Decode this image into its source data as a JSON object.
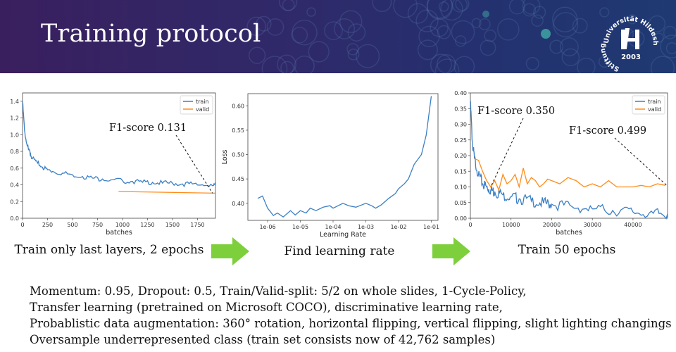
{
  "slide": {
    "title": "Training protocol"
  },
  "logo": {
    "text_top": "Universität Hildesheim",
    "text_left": "Stiftung",
    "year": "2003"
  },
  "colors": {
    "train": "#3b7fc4",
    "valid": "#ff8c1a",
    "arrow": "#7dcf3c",
    "header": "#2f2a6a"
  },
  "captions": {
    "plot1": "Train only last layers, 2 epochs",
    "plot2": "Find learning rate",
    "plot3": "Train 50 epochs"
  },
  "bullets": [
    "Momentum: 0.95, Dropout: 0.5, Train/Valid-split: 5/2 on whole slides, 1-Cycle-Policy,",
    "Transfer learning (pretrained on Microsoft COCO), discriminative learning rate,",
    "Probablistic data augmentation: 360° rotation, horizontal flipping, vertical flipping, slight lighting changings",
    "Oversample underrepresented class (train set consists now of 42,762 samples)"
  ],
  "chart_data": [
    {
      "type": "line",
      "xlabel": "batches",
      "ylabel": "",
      "xlim": [
        0,
        1930
      ],
      "ylim": [
        0,
        1.5
      ],
      "xticks": [
        "0",
        "250",
        "500",
        "750",
        "1000",
        "1250",
        "1500",
        "1750"
      ],
      "yticks": [
        "0.0",
        "0.2",
        "0.4",
        "0.6",
        "0.8",
        "1.0",
        "1.2",
        "1.4"
      ],
      "legend": [
        "train",
        "valid"
      ],
      "legend_position": "top-right",
      "annotation": "F1-score 0.131",
      "series": [
        {
          "name": "train",
          "x": [
            0,
            20,
            40,
            60,
            80,
            100,
            150,
            200,
            250,
            300,
            400,
            500,
            600,
            700,
            800,
            900,
            1000,
            1100,
            1200,
            1300,
            1400,
            1500,
            1600,
            1700,
            1800,
            1900,
            1930
          ],
          "y": [
            1.4,
            1.05,
            0.9,
            0.82,
            0.77,
            0.72,
            0.66,
            0.61,
            0.58,
            0.56,
            0.54,
            0.52,
            0.5,
            0.48,
            0.47,
            0.46,
            0.45,
            0.44,
            0.43,
            0.43,
            0.42,
            0.42,
            0.41,
            0.41,
            0.4,
            0.39,
            0.39
          ]
        },
        {
          "name": "valid",
          "x": [
            960,
            1930
          ],
          "y": [
            0.32,
            0.3
          ]
        }
      ]
    },
    {
      "type": "line",
      "xlabel": "Learning Rate",
      "ylabel": "Loss",
      "xscale": "log",
      "xlim": [
        2.5e-07,
        0.16
      ],
      "ylim": [
        0.365,
        0.625
      ],
      "xticks": [
        "1e-06",
        "1e-05",
        "1e-04",
        "1e-03",
        "1e-02",
        "1e-01"
      ],
      "yticks": [
        "0.40",
        "0.45",
        "0.50",
        "0.55",
        "0.60"
      ],
      "series": [
        {
          "name": "",
          "x": [
            5e-07,
            7e-07,
            1e-06,
            1.5e-06,
            2e-06,
            3e-06,
            5e-06,
            7e-06,
            1e-05,
            1.5e-05,
            2e-05,
            3e-05,
            5e-05,
            8e-05,
            0.0001,
            0.0002,
            0.0003,
            0.0005,
            0.001,
            0.0015,
            0.002,
            0.003,
            0.005,
            0.008,
            0.01,
            0.015,
            0.02,
            0.03,
            0.05,
            0.07,
            0.1
          ],
          "y": [
            0.41,
            0.415,
            0.39,
            0.375,
            0.38,
            0.372,
            0.385,
            0.376,
            0.385,
            0.38,
            0.39,
            0.385,
            0.392,
            0.395,
            0.39,
            0.4,
            0.395,
            0.392,
            0.4,
            0.395,
            0.39,
            0.397,
            0.41,
            0.42,
            0.43,
            0.44,
            0.45,
            0.48,
            0.5,
            0.54,
            0.62
          ]
        }
      ]
    },
    {
      "type": "line",
      "xlabel": "batches",
      "ylabel": "",
      "xlim": [
        0,
        48500
      ],
      "ylim": [
        0,
        0.4
      ],
      "xticks": [
        "0",
        "10000",
        "20000",
        "30000",
        "40000"
      ],
      "yticks": [
        "0.00",
        "0.05",
        "0.10",
        "0.15",
        "0.20",
        "0.25",
        "0.30",
        "0.35",
        "0.40"
      ],
      "legend": [
        "train",
        "valid"
      ],
      "legend_position": "top-right",
      "annotations": [
        "F1-score 0.350",
        "F1-score 0.499"
      ],
      "series": [
        {
          "name": "train",
          "x": [
            0,
            500,
            1000,
            2000,
            3000,
            4000,
            5000,
            6000,
            8000,
            10000,
            12000,
            15000,
            18000,
            20000,
            25000,
            30000,
            35000,
            40000,
            45000,
            48500
          ],
          "y": [
            0.37,
            0.24,
            0.19,
            0.14,
            0.11,
            0.1,
            0.09,
            0.085,
            0.075,
            0.068,
            0.062,
            0.055,
            0.048,
            0.045,
            0.037,
            0.03,
            0.025,
            0.02,
            0.016,
            0.014
          ]
        },
        {
          "name": "valid",
          "x": [
            1000,
            2000,
            3000,
            4000,
            5000,
            6000,
            7000,
            8000,
            9000,
            10000,
            11000,
            12000,
            13000,
            14000,
            15000,
            16000,
            17000,
            18000,
            19000,
            20000,
            22000,
            24000,
            26000,
            28000,
            30000,
            32000,
            34000,
            36000,
            38000,
            40000,
            42000,
            44000,
            46000,
            48000
          ],
          "y": [
            0.19,
            0.185,
            0.15,
            0.12,
            0.1,
            0.12,
            0.09,
            0.14,
            0.11,
            0.12,
            0.14,
            0.1,
            0.16,
            0.11,
            0.13,
            0.12,
            0.1,
            0.11,
            0.125,
            0.12,
            0.11,
            0.13,
            0.12,
            0.1,
            0.11,
            0.1,
            0.12,
            0.1,
            0.1,
            0.1,
            0.105,
            0.1,
            0.11,
            0.105
          ]
        }
      ]
    }
  ]
}
